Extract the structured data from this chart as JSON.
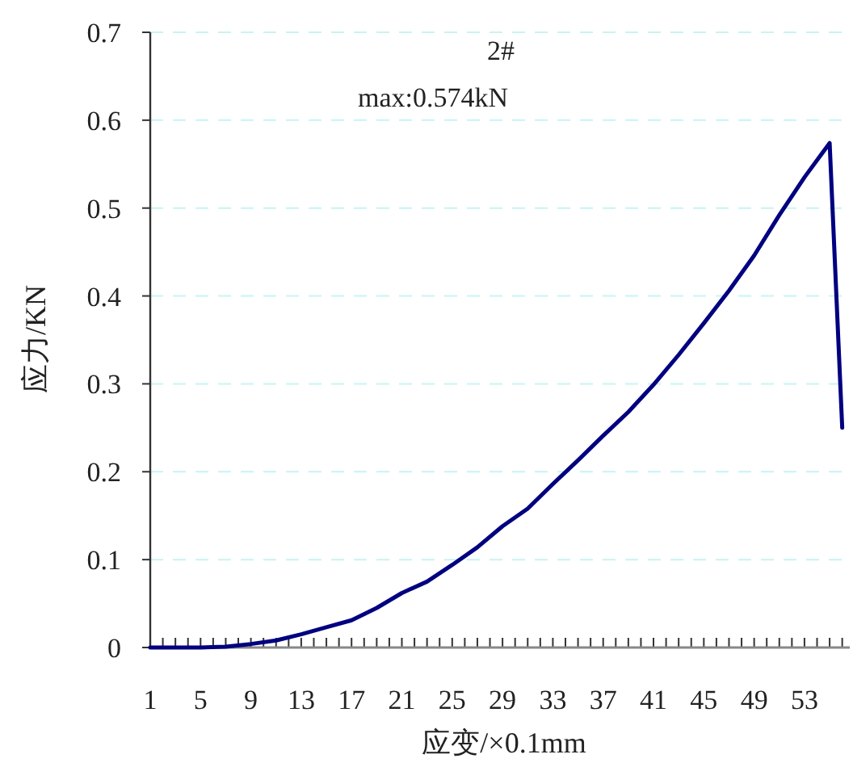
{
  "chart_data": {
    "type": "line",
    "title": "2#",
    "subtitle": "max:0.574kN",
    "xlabel": "应变/×0.1mm",
    "ylabel": "应力/KN",
    "x": [
      1,
      3,
      5,
      7,
      9,
      11,
      13,
      15,
      17,
      19,
      21,
      23,
      25,
      27,
      29,
      31,
      33,
      35,
      37,
      39,
      41,
      43,
      45,
      47,
      49,
      51,
      53,
      55,
      56
    ],
    "series": [
      {
        "color": "#000080",
        "values": [
          0,
          0,
          0,
          0.001,
          0.004,
          0.008,
          0.015,
          0.023,
          0.031,
          0.045,
          0.062,
          0.075,
          0.094,
          0.114,
          0.138,
          0.158,
          0.186,
          0.213,
          0.241,
          0.268,
          0.299,
          0.333,
          0.369,
          0.406,
          0.446,
          0.492,
          0.535,
          0.574,
          0.25
        ]
      }
    ],
    "xlim": [
      1,
      56.6
    ],
    "ylim": [
      0,
      0.7
    ],
    "xticks": [
      1,
      {
        "value": 2,
        "label": null
      },
      {
        "value": 3,
        "label": null
      },
      {
        "value": 4,
        "label": null
      },
      5,
      {
        "value": 6,
        "label": null
      },
      {
        "value": 7,
        "label": null
      },
      {
        "value": 8,
        "label": null
      },
      9,
      {
        "value": 10,
        "label": null
      },
      {
        "value": 11,
        "label": null
      },
      {
        "value": 12,
        "label": null
      },
      13,
      {
        "value": 14,
        "label": null
      },
      {
        "value": 15,
        "label": null
      },
      {
        "value": 16,
        "label": null
      },
      17,
      {
        "value": 18,
        "label": null
      },
      {
        "value": 19,
        "label": null
      },
      {
        "value": 20,
        "label": null
      },
      21,
      {
        "value": 22,
        "label": null
      },
      {
        "value": 23,
        "label": null
      },
      {
        "value": 24,
        "label": null
      },
      25,
      {
        "value": 26,
        "label": null
      },
      {
        "value": 27,
        "label": null
      },
      {
        "value": 28,
        "label": null
      },
      29,
      {
        "value": 30,
        "label": null
      },
      {
        "value": 31,
        "label": null
      },
      {
        "value": 32,
        "label": null
      },
      33,
      {
        "value": 34,
        "label": null
      },
      {
        "value": 35,
        "label": null
      },
      {
        "value": 36,
        "label": null
      },
      37,
      {
        "value": 38,
        "label": null
      },
      {
        "value": 39,
        "label": null
      },
      {
        "value": 40,
        "label": null
      },
      41,
      {
        "value": 42,
        "label": null
      },
      {
        "value": 43,
        "label": null
      },
      {
        "value": 44,
        "label": null
      },
      45,
      {
        "value": 46,
        "label": null
      },
      {
        "value": 47,
        "label": null
      },
      {
        "value": 48,
        "label": null
      },
      49,
      {
        "value": 50,
        "label": null
      },
      {
        "value": 51,
        "label": null
      },
      {
        "value": 52,
        "label": null
      },
      53,
      {
        "value": 54,
        "label": null
      },
      {
        "value": 55,
        "label": null
      },
      {
        "value": 56,
        "label": null
      }
    ],
    "yticks": [
      0,
      {
        "value": 0.1,
        "label": "0.1"
      },
      {
        "value": 0.2,
        "label": "0.2"
      },
      {
        "value": 0.3,
        "label": "0.3"
      },
      {
        "value": 0.4,
        "label": "0.4"
      },
      {
        "value": 0.5,
        "label": "0.5"
      },
      {
        "value": 0.6,
        "label": "0.6"
      },
      {
        "value": 0.7,
        "label": "0.7"
      }
    ],
    "grid": "y",
    "line_style": "solid",
    "marker": "none"
  }
}
